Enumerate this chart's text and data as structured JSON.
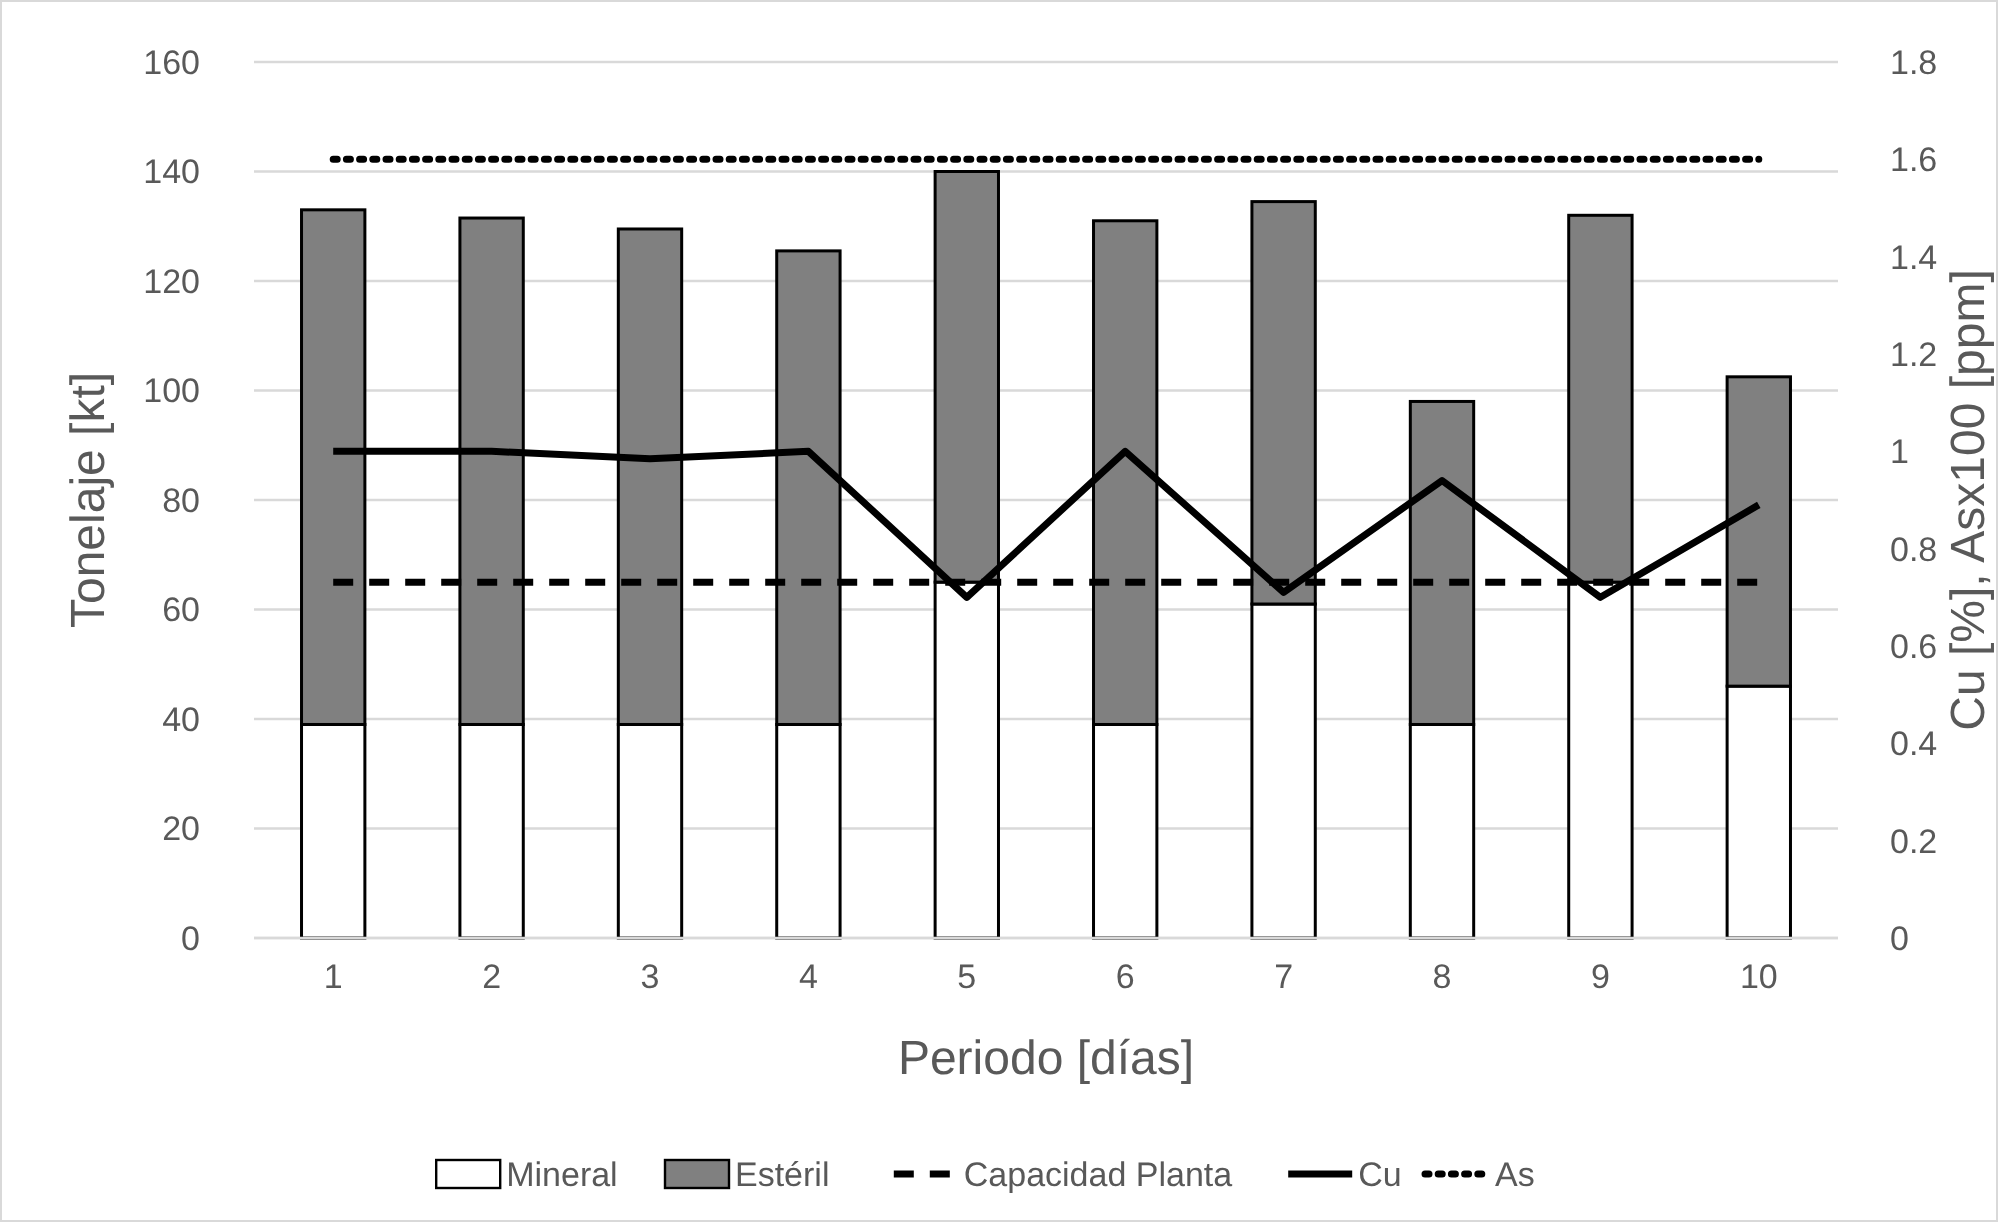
{
  "chart_data": {
    "type": "bar",
    "stacked": true,
    "xlabel": "Periodo [días]",
    "ylabel": "Tonelaje [kt]",
    "y2label": "Cu [%], Asx100 [ppm]",
    "categories": [
      "1",
      "2",
      "3",
      "4",
      "5",
      "6",
      "7",
      "8",
      "9",
      "10"
    ],
    "series": [
      {
        "name": "Mineral",
        "color": "#ffffff",
        "values": [
          39,
          39,
          39,
          39,
          65,
          39,
          61,
          39,
          65,
          46
        ]
      },
      {
        "name": "Estéril",
        "color": "#808080",
        "values": [
          94,
          92.5,
          90.5,
          86.5,
          75,
          92,
          73.5,
          59,
          67,
          56.5
        ]
      },
      {
        "name": "Capacidad Planta",
        "type": "line",
        "line_style": "dashed",
        "color": "#000000",
        "values": [
          65,
          65,
          65,
          65,
          65,
          65,
          65,
          65,
          65,
          65
        ]
      },
      {
        "name": "Cu",
        "type": "line",
        "line_style": "solid",
        "axis": "y2",
        "color": "#000000",
        "values": [
          1.0,
          1.0,
          0.985,
          1.0,
          0.7,
          1.0,
          0.71,
          0.94,
          0.7,
          0.89
        ]
      },
      {
        "name": "As",
        "type": "line",
        "line_style": "dotted",
        "axis": "y2",
        "color": "#000000",
        "values": [
          1.6,
          1.6,
          1.6,
          1.6,
          1.6,
          1.6,
          1.6,
          1.6,
          1.6,
          1.6
        ]
      }
    ],
    "ylim": [
      0,
      160
    ],
    "yticks": [
      0,
      20,
      40,
      60,
      80,
      100,
      120,
      140,
      160
    ],
    "y2lim": [
      0,
      1.8
    ],
    "y2ticks": [
      0,
      0.2,
      0.4,
      0.6,
      0.8,
      1,
      1.2,
      1.4,
      1.6,
      1.8
    ],
    "grid": "y",
    "legend": "bottom"
  }
}
